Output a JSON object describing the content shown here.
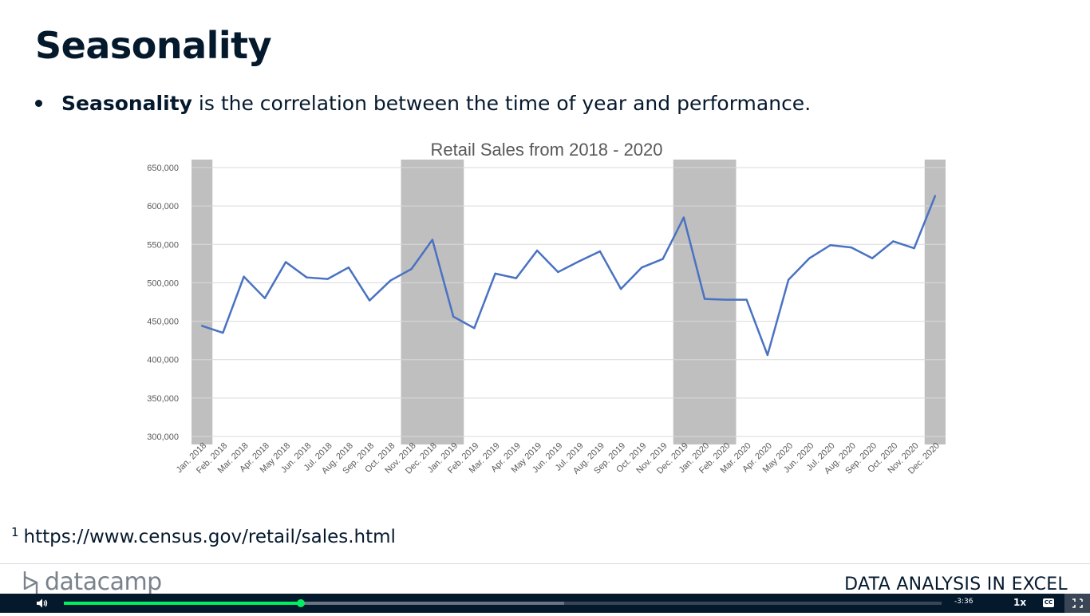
{
  "slide": {
    "title": "Seasonality",
    "bullet_term": "Seasonality",
    "bullet_rest": " is the correlation between the time of year and performance.",
    "footnote_mark": "1",
    "footnote_url": "https://www.census.gov/retail/sales.html"
  },
  "footer": {
    "brand": "datacamp",
    "course": "DATA ANALYSIS IN EXCEL"
  },
  "player": {
    "time_remaining": "-3:36",
    "speed": "1x",
    "cc_label": "CC",
    "progress": 0.27,
    "buffered": 0.57
  },
  "colors": {
    "line": "#4a72c2",
    "highlight": "#bfbfbf",
    "gridline": "#d9d9d9",
    "text_dark": "#05192d",
    "accent_green": "#03ef62"
  },
  "chart_data": {
    "type": "line",
    "title": "Retail Sales from 2018 - 2020",
    "categories": [
      "Jan. 2018",
      "Feb. 2018",
      "Mar. 2018",
      "Apr. 2018",
      "May 2018",
      "Jun. 2018",
      "Jul. 2018",
      "Aug. 2018",
      "Sep. 2018",
      "Oct. 2018",
      "Nov. 2018",
      "Dec. 2018",
      "Jan. 2019",
      "Feb. 2019",
      "Mar. 2019",
      "Apr. 2019",
      "May 2019",
      "Jun. 2019",
      "Jul. 2019",
      "Aug. 2019",
      "Sep. 2019",
      "Oct. 2019",
      "Nov. 2019",
      "Dec. 2019",
      "Jan. 2020",
      "Feb. 2020",
      "Mar. 2020",
      "Apr. 2020",
      "May 2020",
      "Jun. 2020",
      "Jul. 2020",
      "Aug. 2020",
      "Sep. 2020",
      "Oct. 2020",
      "Nov. 2020",
      "Dec. 2020"
    ],
    "series": [
      {
        "values": [
          444000,
          435000,
          508000,
          480000,
          527000,
          507000,
          505000,
          520000,
          477000,
          503000,
          518000,
          556000,
          456000,
          441000,
          512000,
          506000,
          542000,
          514000,
          528000,
          541000,
          492000,
          520000,
          531000,
          585000,
          479000,
          478000,
          478000,
          406000,
          504000,
          532000,
          549000,
          546000,
          532000,
          554000,
          545000,
          613000
        ]
      }
    ],
    "ylim": [
      300000,
      650000
    ],
    "yticks": [
      300000,
      350000,
      400000,
      450000,
      500000,
      550000,
      600000,
      650000
    ],
    "ytick_labels": [
      "300,000",
      "350,000",
      "400,000",
      "450,000",
      "500,000",
      "550,000",
      "600,000",
      "650,000"
    ],
    "highlight_ranges": [
      {
        "from": "Jan. 2018",
        "to": "Jan. 2018"
      },
      {
        "from": "Nov. 2018",
        "to": "Jan. 2019"
      },
      {
        "from": "Dec. 2019",
        "to": "Feb. 2020"
      },
      {
        "from": "Dec. 2020",
        "to": "Dec. 2020"
      }
    ],
    "grid": true,
    "legend": "none"
  }
}
